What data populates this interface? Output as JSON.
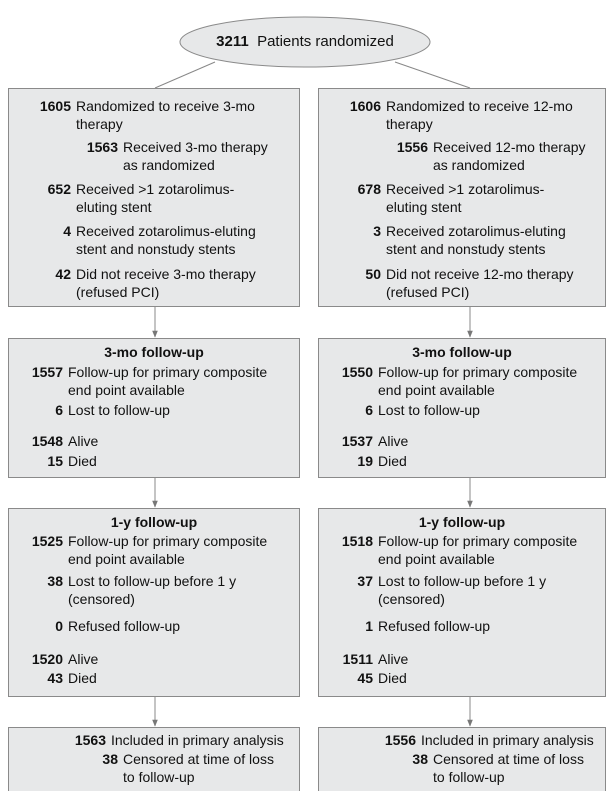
{
  "randomized": {
    "count": 3211,
    "label": "Patients randomized"
  },
  "arms": [
    {
      "allocation": {
        "items": [
          {
            "count": 1605,
            "lines": [
              "Randomized to receive 3-mo",
              "therapy"
            ]
          },
          {
            "count": 1563,
            "lines": [
              "Received 3-mo therapy",
              "as randomized"
            ]
          },
          {
            "count": 652,
            "lines": [
              "Received >1  zotarolimus-",
              "eluting stent"
            ]
          },
          {
            "count": 4,
            "lines": [
              "Received zotarolimus-eluting",
              "stent and nonstudy stents"
            ]
          },
          {
            "count": 42,
            "lines": [
              "Did not receive 3-mo therapy",
              "(refused PCI)"
            ]
          }
        ]
      },
      "followup_3mo": {
        "heading": "3-mo follow-up",
        "items": [
          {
            "count": 1557,
            "lines": [
              "Follow-up for primary composite",
              "end point available"
            ]
          },
          {
            "count": 6,
            "lines": [
              "Lost to follow-up"
            ]
          },
          {
            "count": 1548,
            "lines": [
              "Alive"
            ]
          },
          {
            "count": 15,
            "lines": [
              "Died"
            ]
          }
        ]
      },
      "followup_1y": {
        "heading": "1-y follow-up",
        "items": [
          {
            "count": 1525,
            "lines": [
              "Follow-up for primary composite",
              "end point available"
            ]
          },
          {
            "count": 38,
            "lines": [
              "Lost to follow-up before 1 y",
              "(censored)"
            ]
          },
          {
            "count": 0,
            "lines": [
              "Refused follow-up"
            ]
          },
          {
            "count": 1520,
            "lines": [
              "Alive"
            ]
          },
          {
            "count": 43,
            "lines": [
              "Died"
            ]
          }
        ]
      },
      "analysis": {
        "items": [
          {
            "count": 1563,
            "lines": [
              "Included in primary analysis"
            ]
          },
          {
            "count": 38,
            "lines": [
              "Censored at time of loss",
              "to follow-up"
            ]
          }
        ]
      }
    },
    {
      "allocation": {
        "items": [
          {
            "count": 1606,
            "lines": [
              "Randomized to receive 12-mo",
              "therapy"
            ]
          },
          {
            "count": 1556,
            "lines": [
              "Received 12-mo therapy",
              "as randomized"
            ]
          },
          {
            "count": 678,
            "lines": [
              "Received >1  zotarolimus-",
              "eluting stent"
            ]
          },
          {
            "count": 3,
            "lines": [
              "Received zotarolimus-eluting",
              "stent and nonstudy stents"
            ]
          },
          {
            "count": 50,
            "lines": [
              "Did not receive 12-mo therapy",
              "(refused PCI)"
            ]
          }
        ]
      },
      "followup_3mo": {
        "heading": "3-mo follow-up",
        "items": [
          {
            "count": 1550,
            "lines": [
              "Follow-up for primary composite",
              "end point available"
            ]
          },
          {
            "count": 6,
            "lines": [
              "Lost to follow-up"
            ]
          },
          {
            "count": 1537,
            "lines": [
              "Alive"
            ]
          },
          {
            "count": 19,
            "lines": [
              "Died"
            ]
          }
        ]
      },
      "followup_1y": {
        "heading": "1-y follow-up",
        "items": [
          {
            "count": 1518,
            "lines": [
              "Follow-up for primary composite",
              "end point available"
            ]
          },
          {
            "count": 37,
            "lines": [
              "Lost to follow-up before 1 y",
              "(censored)"
            ]
          },
          {
            "count": 1,
            "lines": [
              "Refused follow-up"
            ]
          },
          {
            "count": 1511,
            "lines": [
              "Alive"
            ]
          },
          {
            "count": 45,
            "lines": [
              "Died"
            ]
          }
        ]
      },
      "analysis": {
        "items": [
          {
            "count": 1556,
            "lines": [
              "Included in primary analysis"
            ]
          },
          {
            "count": 38,
            "lines": [
              "Censored at time of loss",
              "to follow-up"
            ]
          }
        ]
      }
    }
  ]
}
